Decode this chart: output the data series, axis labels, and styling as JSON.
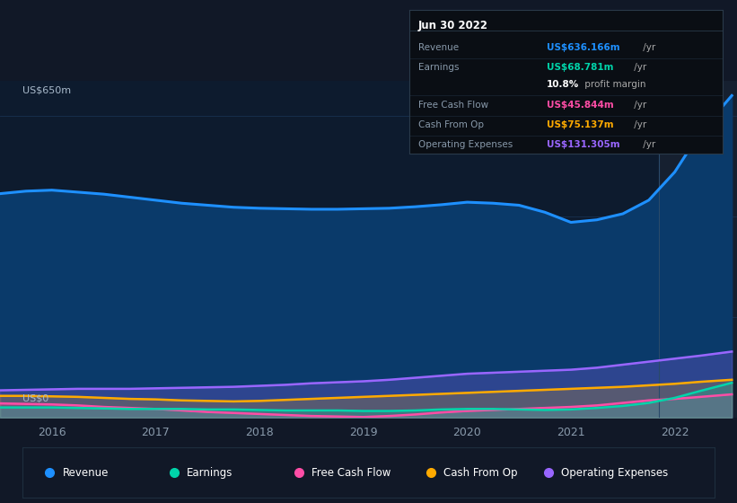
{
  "bg_color": "#111827",
  "plot_bg_color": "#0d1b2e",
  "grid_color": "#1e3a5f",
  "revenue_color": "#1e90ff",
  "revenue_fill": "#0a3a6a",
  "earnings_color": "#00d4aa",
  "fcf_color": "#ff4da6",
  "cashop_color": "#ffaa00",
  "opex_color": "#9966ff",
  "ylabel_top": "US$650m",
  "ylabel_bottom": "US$0",
  "xticks": [
    2016,
    2017,
    2018,
    2019,
    2020,
    2021,
    2022
  ],
  "tooltip": {
    "date": "Jun 30 2022",
    "rows": [
      {
        "label": "Revenue",
        "val": "US$636.166m",
        "color": "#1e90ff"
      },
      {
        "label": "Earnings",
        "val": "US$68.781m",
        "color": "#00d4aa"
      },
      {
        "label": "",
        "val": "10.8% profit margin",
        "color": "#aaaaaa"
      },
      {
        "label": "Free Cash Flow",
        "val": "US$45.844m",
        "color": "#ff4da6"
      },
      {
        "label": "Cash From Op",
        "val": "US$75.137m",
        "color": "#ffaa00"
      },
      {
        "label": "Operating Expenses",
        "val": "US$131.305m",
        "color": "#9966ff"
      }
    ]
  },
  "x": [
    2015.5,
    2015.75,
    2016.0,
    2016.25,
    2016.5,
    2016.75,
    2017.0,
    2017.25,
    2017.5,
    2017.75,
    2018.0,
    2018.25,
    2018.5,
    2018.75,
    2019.0,
    2019.25,
    2019.5,
    2019.75,
    2020.0,
    2020.25,
    2020.5,
    2020.75,
    2021.0,
    2021.25,
    2021.5,
    2021.75,
    2022.0,
    2022.25,
    2022.55
  ],
  "revenue": [
    445,
    450,
    452,
    448,
    444,
    438,
    432,
    426,
    422,
    418,
    416,
    415,
    414,
    414,
    415,
    416,
    419,
    423,
    428,
    426,
    422,
    408,
    388,
    393,
    405,
    432,
    488,
    568,
    640
  ],
  "earnings": [
    20,
    20,
    20,
    19,
    18,
    17,
    17,
    17,
    16,
    16,
    15,
    14,
    14,
    14,
    13,
    13,
    14,
    16,
    17,
    17,
    16,
    15,
    16,
    19,
    23,
    29,
    39,
    53,
    69
  ],
  "fcf": [
    28,
    27,
    26,
    24,
    21,
    19,
    17,
    14,
    11,
    9,
    7,
    5,
    3,
    2,
    1,
    3,
    6,
    10,
    13,
    15,
    17,
    19,
    21,
    24,
    29,
    34,
    37,
    41,
    46
  ],
  "cashop": [
    43,
    43,
    42,
    41,
    39,
    37,
    36,
    34,
    33,
    32,
    33,
    35,
    37,
    39,
    41,
    43,
    45,
    47,
    49,
    51,
    53,
    55,
    57,
    59,
    61,
    64,
    67,
    71,
    75
  ],
  "opex": [
    54,
    55,
    56,
    57,
    57,
    57,
    58,
    59,
    60,
    61,
    63,
    65,
    68,
    70,
    72,
    75,
    79,
    83,
    87,
    89,
    91,
    93,
    95,
    99,
    105,
    111,
    117,
    123,
    131
  ],
  "ylim": [
    0,
    670
  ],
  "xlim": [
    2015.5,
    2022.6
  ],
  "highlight_x_start": 2021.85,
  "highlight_x_end": 2022.6,
  "highlight_color": "#162030"
}
